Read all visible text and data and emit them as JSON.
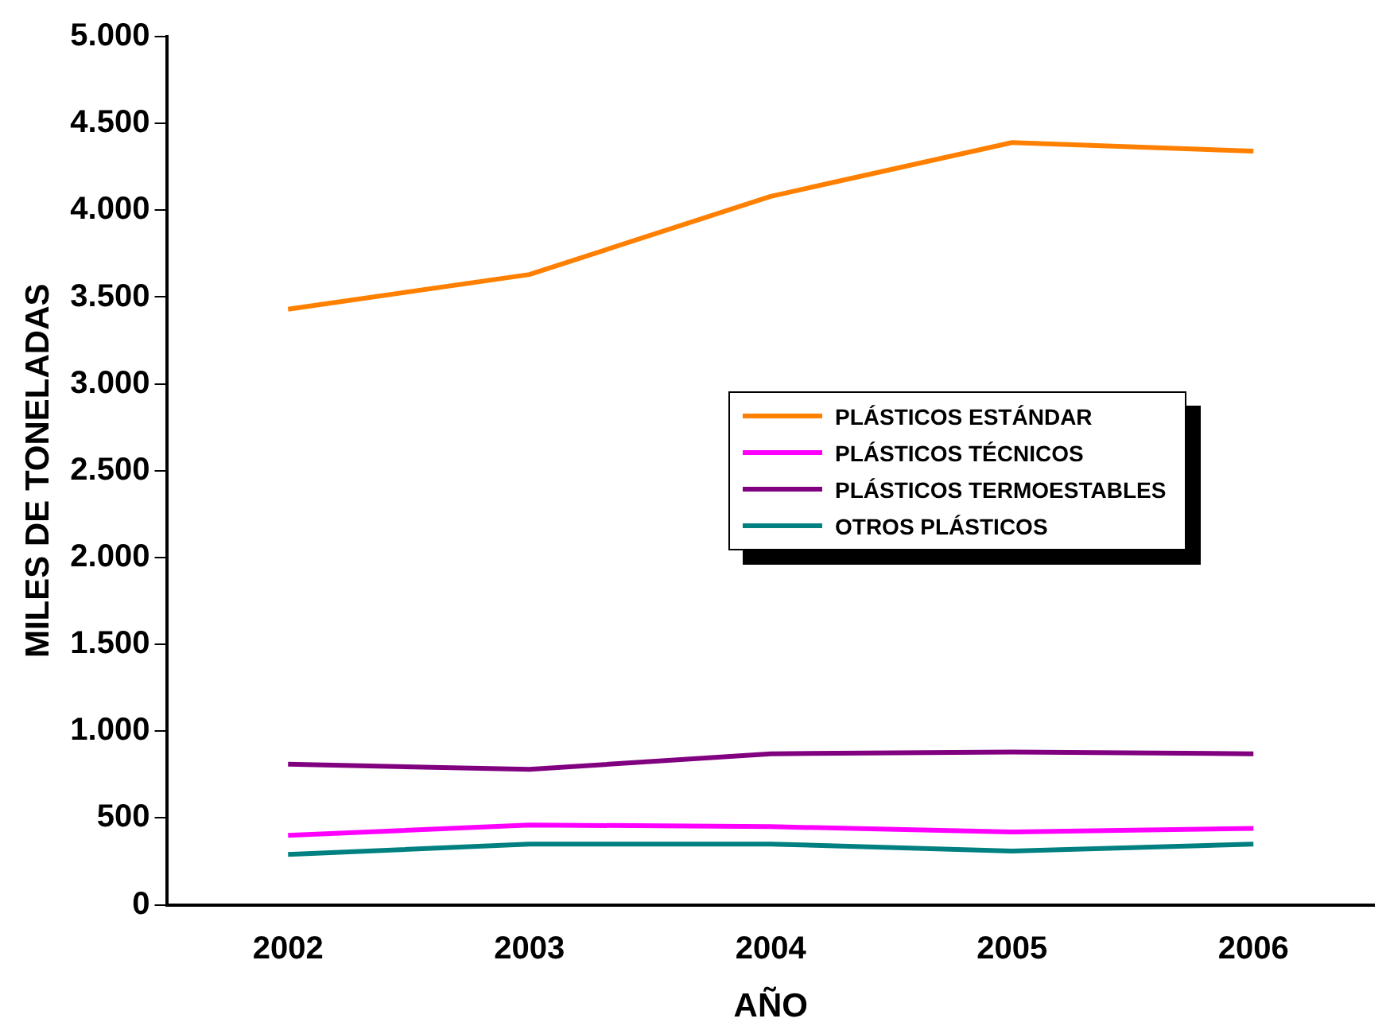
{
  "chart_data": {
    "type": "line",
    "xlabel": "AÑO",
    "ylabel": "MILES DE TONELADAS",
    "categories": [
      "2002",
      "2003",
      "2004",
      "2005",
      "2006"
    ],
    "series": [
      {
        "name": "PLÁSTICOS ESTÁNDAR",
        "color": "#ff8000",
        "values": [
          3430,
          3630,
          4080,
          4390,
          4340
        ]
      },
      {
        "name": "PLÁSTICOS TÉCNICOS",
        "color": "#ff00ff",
        "values": [
          400,
          460,
          450,
          420,
          440
        ]
      },
      {
        "name": "PLÁSTICOS TERMOESTABLES",
        "color": "#800080",
        "values": [
          810,
          780,
          870,
          880,
          870
        ]
      },
      {
        "name": "OTROS PLÁSTICOS",
        "color": "#008080",
        "values": [
          290,
          350,
          350,
          310,
          350
        ]
      }
    ],
    "ylim": [
      0,
      5000
    ],
    "yticks": [
      {
        "value": 0,
        "label": "0"
      },
      {
        "value": 500,
        "label": "500"
      },
      {
        "value": 1000,
        "label": "1.000"
      },
      {
        "value": 1500,
        "label": "1.500"
      },
      {
        "value": 2000,
        "label": "2.000"
      },
      {
        "value": 2500,
        "label": "2.500"
      },
      {
        "value": 3000,
        "label": "3.000"
      },
      {
        "value": 3500,
        "label": "3.500"
      },
      {
        "value": 4000,
        "label": "4.000"
      },
      {
        "value": 4500,
        "label": "4.500"
      },
      {
        "value": 5000,
        "label": "5.000"
      }
    ],
    "grid": false,
    "legend": "right",
    "marker": "none",
    "line_style": "solid"
  }
}
